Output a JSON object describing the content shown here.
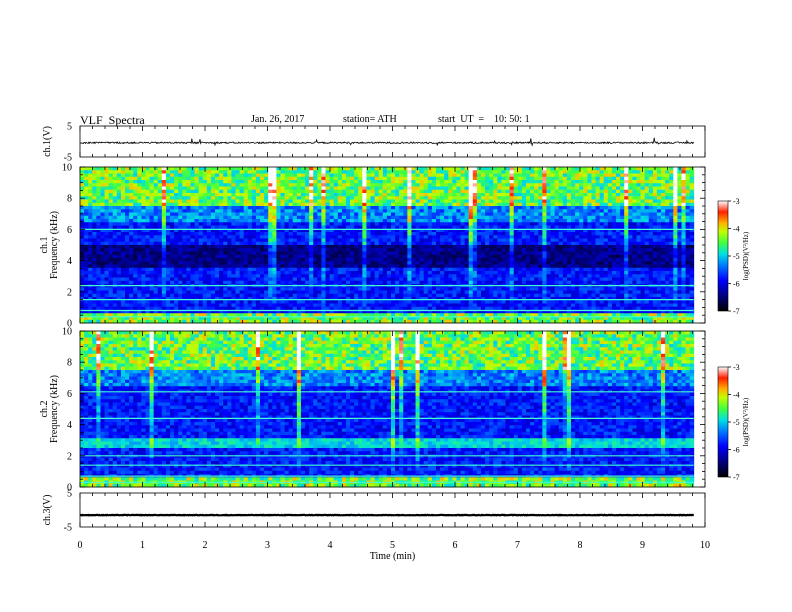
{
  "header": {
    "title": "VLF  Spectra",
    "date": "Jan. 26, 2017",
    "station": "station= ATH",
    "start": "start  UT  =    10: 50: 1"
  },
  "colors": {
    "frame": "#000000",
    "spec_low": "#00007f",
    "spec_high": "#ff0000"
  },
  "chart_data": [
    {
      "type": "line",
      "name": "ch.1(V) waveform",
      "ylabel": "ch.1(V)",
      "ylim": [
        -5,
        5
      ],
      "y_ticks": [
        "5",
        "-5"
      ],
      "x_range_min": [
        0,
        10
      ],
      "data_end_min": 9.82,
      "level": -0.4,
      "noise_amplitude": 0.5
    },
    {
      "type": "heatmap",
      "name": "ch.1 spectrogram",
      "ylabel": "ch.1\nFrequency (kHz)",
      "ylim": [
        0,
        10
      ],
      "y_ticks": [
        "0",
        "2",
        "4",
        "6",
        "8",
        "10"
      ],
      "x_range_min": [
        0,
        10
      ],
      "colorbar": {
        "label": "log(PSD)(V²/Hz)",
        "range": [
          -7,
          -3
        ],
        "ticks": [
          "-3",
          "-4",
          "-5",
          "-6",
          "-7"
        ]
      }
    },
    {
      "type": "heatmap",
      "name": "ch.2 spectrogram",
      "ylabel": "ch.2\nFrequency (kHz)",
      "ylim": [
        0,
        10
      ],
      "y_ticks": [
        "0",
        "2",
        "4",
        "6",
        "8",
        "10"
      ],
      "x_range_min": [
        0,
        10
      ],
      "colorbar": {
        "label": "log(PSD)(V²/Hz)",
        "range": [
          -7,
          -3
        ],
        "ticks": [
          "-3",
          "-4",
          "-5",
          "-6",
          "-7"
        ]
      }
    },
    {
      "type": "line",
      "name": "ch.3(V) waveform",
      "ylabel": "ch.3(V)",
      "ylim": [
        -5,
        5
      ],
      "y_ticks": [
        "5",
        "-5"
      ],
      "x_range_min": [
        0,
        10
      ],
      "data_end_min": 9.82,
      "level": -1.5,
      "noise_amplitude": 0.15
    }
  ],
  "x_axis": {
    "label": "Time  (min)",
    "ticks": [
      "0",
      "1",
      "2",
      "3",
      "4",
      "5",
      "6",
      "7",
      "8",
      "9",
      "10"
    ]
  }
}
